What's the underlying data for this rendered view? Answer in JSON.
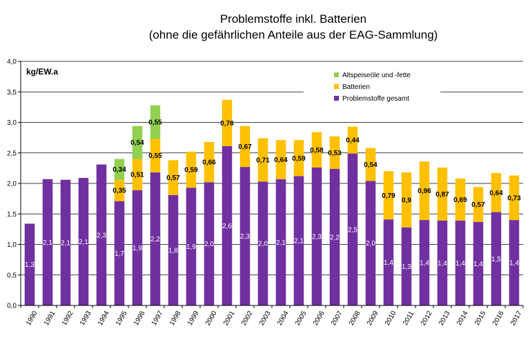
{
  "chart_data": {
    "type": "bar",
    "stacked": true,
    "title": "Problemstoffe inkl. Batterien",
    "subtitle": "(ohne die gefährlichen Anteile aus der EAG-Sammlung)",
    "unit_label": "kg/EW.a",
    "ylim": [
      0,
      4.0
    ],
    "yticks": [
      "0,0",
      "0,5",
      "1,0",
      "1,5",
      "2,0",
      "2,5",
      "3,0",
      "3,5",
      "4,0"
    ],
    "grid": true,
    "legend_position": "top-right",
    "categories": [
      "1990",
      "1991",
      "1992",
      "1993",
      "1994",
      "1995",
      "1996",
      "1997",
      "1998",
      "1999",
      "2000",
      "2001",
      "2002",
      "2003",
      "2004",
      "2005",
      "2006",
      "2007",
      "2008",
      "2009",
      "2010",
      "2011",
      "2012",
      "2013",
      "2014",
      "2015",
      "2016",
      "2017"
    ],
    "series": [
      {
        "name": "Problemstoffe gesamt",
        "color": "#7030a0",
        "values": [
          1.34,
          2.07,
          2.06,
          2.09,
          2.31,
          1.71,
          1.89,
          2.18,
          1.81,
          1.93,
          2.02,
          2.61,
          2.27,
          2.03,
          2.07,
          2.12,
          2.26,
          2.24,
          2.49,
          2.04,
          1.41,
          1.28,
          1.4,
          1.39,
          1.39,
          1.37,
          1.53,
          1.4
        ],
        "labels": [
          "1,3",
          "2,1",
          "2,1",
          "2,1",
          "2,3",
          "1,7",
          "1,9",
          "2,2",
          "1,8",
          "1,9",
          "2,0",
          "2,6",
          "2,3",
          "2,0",
          "2,1",
          "2,1",
          "2,3",
          "2,2",
          "2,5",
          "2,0",
          "1,4",
          "1,3",
          "1,4",
          "1,4",
          "1,4",
          "1,4",
          "1,5",
          "1,4"
        ]
      },
      {
        "name": "Batterien",
        "color": "#ffc000",
        "values": [
          null,
          null,
          null,
          null,
          null,
          0.35,
          0.51,
          0.55,
          0.57,
          0.59,
          0.66,
          0.76,
          0.67,
          0.71,
          0.64,
          0.59,
          0.58,
          0.53,
          0.44,
          0.54,
          0.79,
          0.9,
          0.96,
          0.87,
          0.69,
          0.57,
          0.64,
          0.73
        ],
        "labels": [
          null,
          null,
          null,
          null,
          null,
          "0,35",
          "0,51",
          "0,55",
          "0,57",
          "0,59",
          "0,66",
          "0,76",
          "0,67",
          "0,71",
          "0,64",
          "0,59",
          "0,58",
          "0,53",
          "0,44",
          "0,54",
          "0,79",
          "0,9",
          "0,96",
          "0,87",
          "0,69",
          "0,57",
          "0,64",
          "0,73"
        ]
      },
      {
        "name": "Altspeiseöle und -fette",
        "color": "#92d050",
        "values": [
          null,
          null,
          null,
          null,
          null,
          0.34,
          0.54,
          0.55,
          null,
          null,
          null,
          null,
          null,
          null,
          null,
          null,
          null,
          null,
          null,
          null,
          null,
          null,
          null,
          null,
          null,
          null,
          null,
          null
        ],
        "labels": [
          null,
          null,
          null,
          null,
          null,
          "0,34",
          "0,54",
          "0,55",
          null,
          null,
          null,
          null,
          null,
          null,
          null,
          null,
          null,
          null,
          null,
          null,
          null,
          null,
          null,
          null,
          null,
          null,
          null,
          null
        ]
      }
    ],
    "legend_order": [
      "Altspeiseöle und -fette",
      "Batterien",
      "Problemstoffe gesamt"
    ]
  }
}
